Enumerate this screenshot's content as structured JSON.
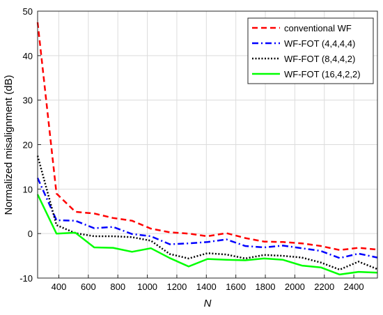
{
  "chart_data": {
    "type": "line",
    "xlabel": "N",
    "ylabel": "Normalized misalignment (dB)",
    "xlim": [
      256,
      2560
    ],
    "ylim": [
      -10,
      50
    ],
    "xticks": [
      400,
      600,
      800,
      1000,
      1200,
      1400,
      1600,
      1800,
      2000,
      2200,
      2400
    ],
    "yticks": [
      -10,
      0,
      10,
      20,
      30,
      40,
      50
    ],
    "grid": true,
    "legend_position": "top-right",
    "x": [
      256,
      384,
      512,
      640,
      768,
      896,
      1024,
      1152,
      1280,
      1408,
      1536,
      1664,
      1792,
      1920,
      2048,
      2176,
      2304,
      2432,
      2560
    ],
    "series": [
      {
        "name": "conventional WF",
        "color": "#ff0000",
        "dash": "dashed",
        "values": [
          47.5,
          9.0,
          4.9,
          4.5,
          3.5,
          2.9,
          1.1,
          0.3,
          0.0,
          -0.6,
          0.1,
          -1.0,
          -1.8,
          -1.9,
          -2.2,
          -2.8,
          -3.7,
          -3.2,
          -3.6
        ]
      },
      {
        "name": "WF-FOT (4,4,4,4)",
        "color": "#0000ff",
        "dash": "dashdot",
        "values": [
          12.5,
          3.0,
          2.9,
          1.2,
          1.5,
          -0.1,
          -0.6,
          -2.4,
          -2.2,
          -1.9,
          -1.3,
          -2.8,
          -3.1,
          -2.7,
          -3.3,
          -3.9,
          -5.5,
          -4.5,
          -5.4
        ]
      },
      {
        "name": "WF-FOT (8,4,4,2)",
        "color": "#000000",
        "dash": "dotted",
        "values": [
          17.5,
          1.9,
          0.1,
          -0.6,
          -0.6,
          -0.8,
          -1.6,
          -4.6,
          -5.6,
          -4.4,
          -4.7,
          -5.6,
          -4.8,
          -5.0,
          -5.4,
          -6.5,
          -8.1,
          -6.3,
          -8.0
        ]
      },
      {
        "name": "WF-FOT (16,4,2,2)",
        "color": "#00ff00",
        "dash": "solid",
        "values": [
          8.8,
          0.0,
          0.2,
          -3.1,
          -3.2,
          -4.1,
          -3.3,
          -5.5,
          -7.4,
          -5.7,
          -5.9,
          -6.0,
          -5.6,
          -5.9,
          -7.2,
          -7.6,
          -9.2,
          -8.6,
          -8.8
        ]
      }
    ]
  }
}
